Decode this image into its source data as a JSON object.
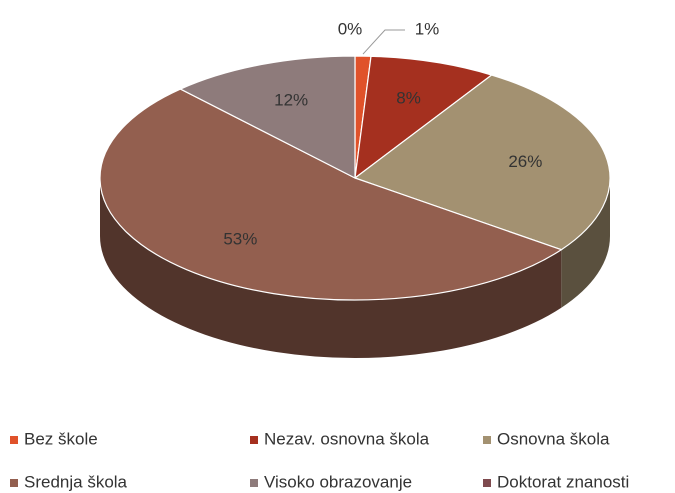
{
  "chart_data": {
    "type": "pie",
    "categories": [
      "Bez škole",
      "Nezav. osnovna škola",
      "Osnovna škola",
      "Srednja škola",
      "Visoko obrazovanje",
      "Doktorat znanosti"
    ],
    "values": [
      1,
      8,
      26,
      53,
      12,
      0
    ],
    "value_labels": [
      "1%",
      "8%",
      "26%",
      "53%",
      "12%",
      "0%"
    ],
    "colors": [
      "#e0522a",
      "#a5301f",
      "#a39171",
      "#935f4f",
      "#8e7b7b",
      "#7e4a4e"
    ],
    "legend": "bottom"
  }
}
